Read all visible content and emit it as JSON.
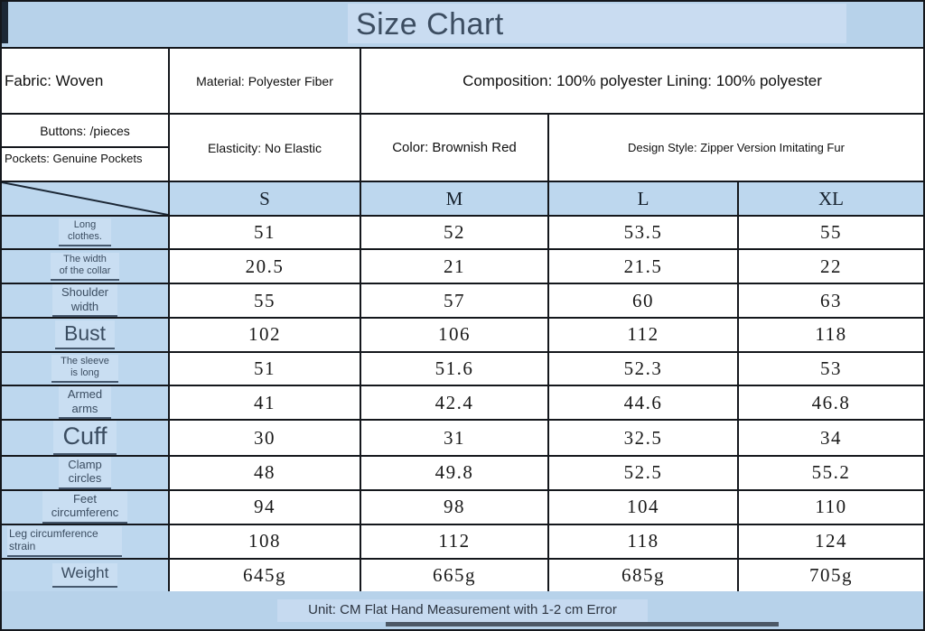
{
  "title": "Size Chart",
  "header": {
    "fabric": "Fabric: Woven",
    "material": "Material: Polyester Fiber",
    "composition": "Composition: 100% polyester Lining: 100% polyester",
    "buttons": "Buttons: /pieces",
    "pockets": "Pockets: Genuine Pockets",
    "elasticity": "Elasticity: No Elastic",
    "color": "Color: Brownish Red",
    "design_style": "Design Style: Zipper Version Imitating Fur"
  },
  "chart_data": {
    "type": "table",
    "title": "Size Chart",
    "sizes": [
      "S",
      "M",
      "L",
      "XL"
    ],
    "rows": [
      {
        "label": "Long clothes.",
        "lines": [
          "Long",
          "clothes."
        ],
        "emphasis": "xs",
        "values": [
          "51",
          "52",
          "53.5",
          "55"
        ]
      },
      {
        "label": "The width of the collar",
        "lines": [
          "The width",
          "of the collar"
        ],
        "emphasis": "xs",
        "values": [
          "20.5",
          "21",
          "21.5",
          "22"
        ]
      },
      {
        "label": "Shoulder width",
        "lines": [
          "Shoulder",
          "width"
        ],
        "emphasis": "sm",
        "values": [
          "55",
          "57",
          "60",
          "63"
        ]
      },
      {
        "label": "Bust",
        "lines": [
          "Bust"
        ],
        "emphasis": "lg",
        "values": [
          "102",
          "106",
          "112",
          "118"
        ]
      },
      {
        "label": "The sleeve is long",
        "lines": [
          "The sleeve",
          "is long"
        ],
        "emphasis": "xs",
        "values": [
          "51",
          "51.6",
          "52.3",
          "53"
        ]
      },
      {
        "label": "Armed arms",
        "lines": [
          "Armed",
          "arms"
        ],
        "emphasis": "sm",
        "values": [
          "41",
          "42.4",
          "44.6",
          "46.8"
        ]
      },
      {
        "label": "Cuff",
        "lines": [
          "Cuff"
        ],
        "emphasis": "xl",
        "values": [
          "30",
          "31",
          "32.5",
          "34"
        ]
      },
      {
        "label": "Clamp circles",
        "lines": [
          "Clamp",
          "circles"
        ],
        "emphasis": "sm",
        "values": [
          "48",
          "49.8",
          "52.5",
          "55.2"
        ]
      },
      {
        "label": "Feet circumferenc",
        "lines": [
          "Feet",
          "circumferenc"
        ],
        "emphasis": "sm",
        "values": [
          "94",
          "98",
          "104",
          "110"
        ]
      },
      {
        "label": "Leg circumference strain",
        "lines": [
          "Leg circumference",
          "strain"
        ],
        "emphasis": "smleft",
        "values": [
          "108",
          "112",
          "118",
          "124"
        ]
      },
      {
        "label": "Weight",
        "lines": [
          "Weight"
        ],
        "emphasis": "md",
        "values": [
          "645g",
          "665g",
          "685g",
          "705g"
        ]
      }
    ]
  },
  "footer": {
    "unit_note": "Unit: CM Flat Hand Measurement with 1-2 cm Error"
  },
  "colors": {
    "band_blue": "#b7d2ea",
    "header_blue": "#bdd7ee",
    "highlight_blue": "#c9dcf1",
    "border": "#14171c",
    "label_text": "#3b4d61",
    "title_text": "#3c4d61",
    "footer_bar": "#4c5866"
  }
}
